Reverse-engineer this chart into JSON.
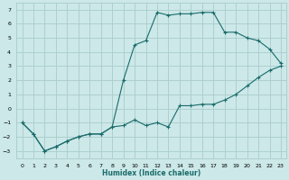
{
  "xlabel": "Humidex (Indice chaleur)",
  "background_color": "#cce8e8",
  "grid_color": "#aacccc",
  "line_color": "#1a6b6b",
  "xlim": [
    -0.5,
    23.5
  ],
  "ylim": [
    -3.5,
    7.5
  ],
  "xticks": [
    0,
    1,
    2,
    3,
    4,
    5,
    6,
    7,
    8,
    9,
    10,
    11,
    12,
    13,
    14,
    15,
    16,
    17,
    18,
    19,
    20,
    21,
    22,
    23
  ],
  "yticks": [
    -3,
    -2,
    -1,
    0,
    1,
    2,
    3,
    4,
    5,
    6,
    7
  ],
  "shared_x": [
    0,
    1,
    2,
    3,
    4,
    5,
    6,
    7,
    8
  ],
  "shared_y": [
    -1,
    -1.8,
    -3,
    -2.7,
    -2.3,
    -2,
    -1.8,
    -1.8,
    -1.3
  ],
  "curve1_x": [
    9,
    10,
    11,
    12,
    13,
    14,
    15,
    16,
    17,
    18,
    19,
    20,
    21,
    22,
    23
  ],
  "curve1_y": [
    -1.2,
    -0.8,
    -1.2,
    -1.0,
    -1.3,
    0.2,
    0.2,
    0.3,
    0.3,
    0.6,
    1.0,
    1.6,
    2.2,
    2.7,
    3.0
  ],
  "curve2_x": [
    9,
    10,
    11,
    12,
    13,
    14,
    15,
    16,
    17,
    18,
    19,
    20,
    21,
    22,
    23
  ],
  "curve2_y": [
    2.0,
    4.5,
    4.8,
    6.8,
    6.6,
    6.7,
    6.7,
    6.8,
    6.8,
    5.4,
    5.4,
    5.0,
    4.8,
    4.2,
    3.2
  ]
}
